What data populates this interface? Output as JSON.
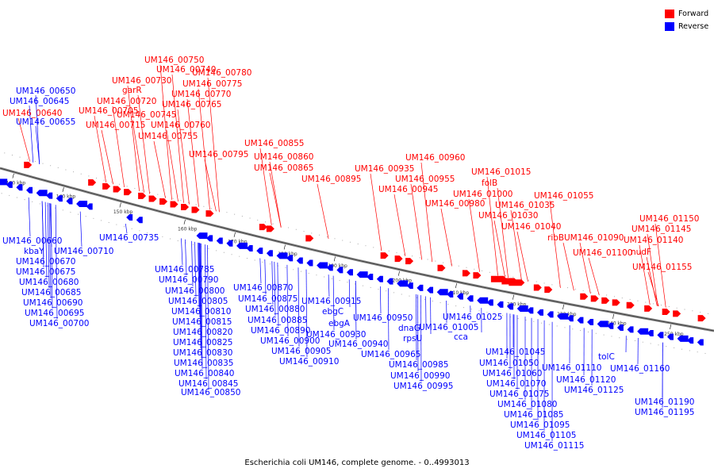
{
  "legend": {
    "forward_label": "Forward",
    "forward_color": "#ff0000",
    "reverse_label": "Reverse",
    "reverse_color": "#0000ff"
  },
  "caption": "Escherichia coli UM146, complete genome. - 0..4993013",
  "axis_ticks": [
    "130 kbp",
    "140 kbp",
    "150 kbp",
    "160 kbp",
    "170 kbp",
    "180 kbp",
    "190 kbp",
    "200 kbp",
    "210 kbp",
    "220 kbp",
    "230 kbp",
    "240 kbp",
    "250 kbp"
  ],
  "forward_labels": [
    "UM146_00750",
    "UM146_00740",
    "UM146_00780",
    "UM146_00730",
    "UM146_00775",
    "garR",
    "UM146_00770",
    "UM146_00720",
    "UM146_00765",
    "UM146_00705",
    "UM146_00745",
    "UM146_00715",
    "UM146_00760",
    "UM146_00755",
    "UM146_00795",
    "UM146_00640",
    "UM146_00855",
    "UM146_00860",
    "UM146_00865",
    "UM146_00895",
    "UM146_00960",
    "UM146_00935",
    "UM146_00955",
    "UM146_00945",
    "UM146_01015",
    "folB",
    "UM146_01000",
    "UM146_01055",
    "UM146_00980",
    "UM146_01035",
    "UM146_01030",
    "UM146_01040",
    "ribB",
    "UM146_01090",
    "UM146_01100",
    "UM146_01150",
    "UM146_01145",
    "UM146_01140",
    "nudF",
    "UM146_01155"
  ],
  "reverse_labels": [
    "UM146_00650",
    "UM146_00645",
    "UM146_00655",
    "UM146_00660",
    "kbaY",
    "UM146_00710",
    "UM146_00670",
    "UM146_00675",
    "UM146_00680",
    "UM146_00685",
    "UM146_00690",
    "UM146_00695",
    "UM146_00700",
    "UM146_00735",
    "UM146_00785",
    "UM146_00790",
    "UM146_00800",
    "UM146_00805",
    "UM146_00810",
    "UM146_00815",
    "UM146_00820",
    "UM146_00825",
    "UM146_00830",
    "UM146_00835",
    "UM146_00840",
    "UM146_00845",
    "UM146_00850",
    "UM146_00870",
    "UM146_00875",
    "UM146_00880",
    "UM146_00885",
    "UM146_00890",
    "UM146_00900",
    "UM146_00905",
    "UM146_00910",
    "UM146_00915",
    "ebgC",
    "ebgA",
    "UM146_00930",
    "UM146_00940",
    "UM146_00950",
    "dnaG",
    "rpsU",
    "UM146_00965",
    "UM146_01005",
    "cca",
    "UM146_01025",
    "UM146_00985",
    "UM146_00990",
    "UM146_00995",
    "UM146_01045",
    "UM146_01050",
    "UM146_01060",
    "UM146_01070",
    "UM146_01075",
    "UM146_01080",
    "UM146_01085",
    "UM146_01095",
    "UM146_01105",
    "UM146_01115",
    "UM146_01110",
    "UM146_01120",
    "UM146_01125",
    "tolC",
    "UM146_01160",
    "UM146_01190",
    "UM146_01195"
  ]
}
